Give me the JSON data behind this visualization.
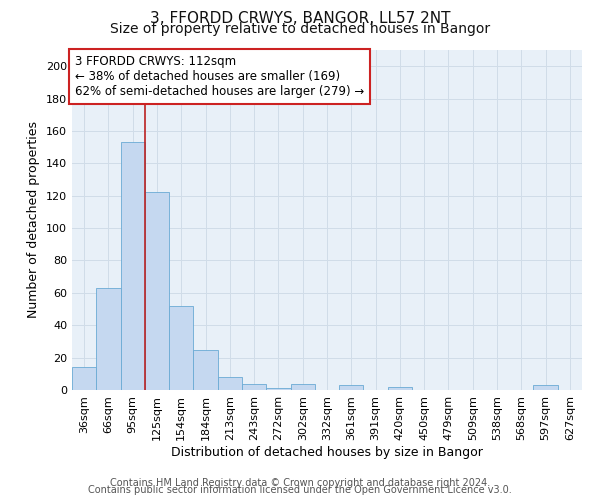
{
  "title": "3, FFORDD CRWYS, BANGOR, LL57 2NT",
  "subtitle": "Size of property relative to detached houses in Bangor",
  "xlabel": "Distribution of detached houses by size in Bangor",
  "ylabel": "Number of detached properties",
  "categories": [
    "36sqm",
    "66sqm",
    "95sqm",
    "125sqm",
    "154sqm",
    "184sqm",
    "213sqm",
    "243sqm",
    "272sqm",
    "302sqm",
    "332sqm",
    "361sqm",
    "391sqm",
    "420sqm",
    "450sqm",
    "479sqm",
    "509sqm",
    "538sqm",
    "568sqm",
    "597sqm",
    "627sqm"
  ],
  "values": [
    14,
    63,
    153,
    122,
    52,
    25,
    8,
    4,
    1,
    4,
    0,
    3,
    0,
    2,
    0,
    0,
    0,
    0,
    0,
    3,
    0
  ],
  "bar_color": "#c5d8f0",
  "bar_edge_color": "#6aaad4",
  "grid_color": "#d0dce8",
  "bg_color": "#e8f0f8",
  "fig_bg_color": "#ffffff",
  "vline_color": "#bb2222",
  "vline_pos": 2.5,
  "annotation_line1": "3 FFORDD CRWYS: 112sqm",
  "annotation_line2": "← 38% of detached houses are smaller (169)",
  "annotation_line3": "62% of semi-detached houses are larger (279) →",
  "annotation_box_color": "#ffffff",
  "annotation_box_edge": "#cc2222",
  "footer_line1": "Contains HM Land Registry data © Crown copyright and database right 2024.",
  "footer_line2": "Contains public sector information licensed under the Open Government Licence v3.0.",
  "ylim": [
    0,
    210
  ],
  "yticks": [
    0,
    20,
    40,
    60,
    80,
    100,
    120,
    140,
    160,
    180,
    200
  ],
  "title_fontsize": 11,
  "subtitle_fontsize": 10,
  "tick_fontsize": 8,
  "ylabel_fontsize": 9,
  "xlabel_fontsize": 9,
  "footer_fontsize": 7
}
